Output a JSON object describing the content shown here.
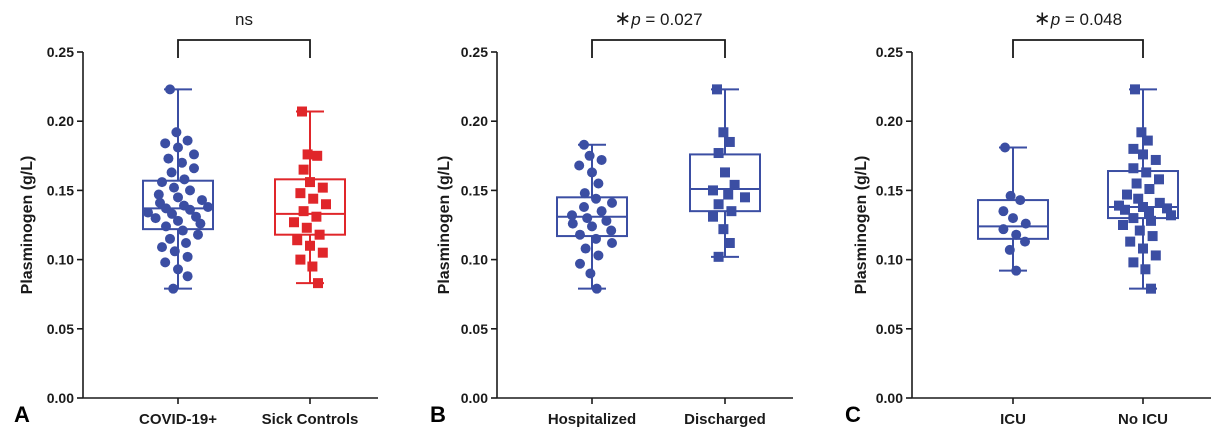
{
  "chart_data": [
    {
      "type": "box",
      "panel_label": "A",
      "ylabel": "Plasminogen (g/L)",
      "ylim": [
        0,
        0.25
      ],
      "yticks": [
        "0.00",
        "0.05",
        "0.10",
        "0.15",
        "0.20",
        "0.25"
      ],
      "categories": [
        "COVID-19+",
        "Sick Controls"
      ],
      "comparison": "ns",
      "colors": [
        "#3b4ea3",
        "#e0262a"
      ],
      "markers": [
        "circle",
        "square"
      ],
      "series": [
        {
          "box": {
            "min": 0.079,
            "q1": 0.122,
            "median": 0.137,
            "q3": 0.157,
            "max": 0.223
          },
          "points": [
            0.223,
            0.192,
            0.186,
            0.184,
            0.181,
            0.176,
            0.173,
            0.17,
            0.166,
            0.163,
            0.158,
            0.156,
            0.152,
            0.15,
            0.147,
            0.145,
            0.143,
            0.141,
            0.139,
            0.138,
            0.137,
            0.136,
            0.134,
            0.133,
            0.131,
            0.13,
            0.128,
            0.126,
            0.124,
            0.121,
            0.118,
            0.115,
            0.112,
            0.109,
            0.106,
            0.102,
            0.098,
            0.093,
            0.088,
            0.079
          ]
        },
        {
          "box": {
            "min": 0.083,
            "q1": 0.118,
            "median": 0.133,
            "q3": 0.158,
            "max": 0.207
          },
          "points": [
            0.207,
            0.176,
            0.175,
            0.165,
            0.156,
            0.152,
            0.148,
            0.144,
            0.14,
            0.135,
            0.131,
            0.127,
            0.123,
            0.118,
            0.114,
            0.11,
            0.105,
            0.1,
            0.095,
            0.083
          ]
        }
      ]
    },
    {
      "type": "box",
      "panel_label": "B",
      "ylabel": "Plasminogen (g/L)",
      "ylim": [
        0,
        0.25
      ],
      "yticks": [
        "0.00",
        "0.05",
        "0.10",
        "0.15",
        "0.20",
        "0.25"
      ],
      "categories": [
        "Hospitalized",
        "Discharged"
      ],
      "comparison_star": "∗",
      "comparison_p": "p",
      "comparison_value": " = 0.027",
      "colors": [
        "#3b4ea3",
        "#3b4ea3"
      ],
      "markers": [
        "circle",
        "square"
      ],
      "series": [
        {
          "box": {
            "min": 0.079,
            "q1": 0.117,
            "median": 0.131,
            "q3": 0.145,
            "max": 0.183
          },
          "points": [
            0.183,
            0.175,
            0.172,
            0.168,
            0.163,
            0.155,
            0.148,
            0.144,
            0.141,
            0.138,
            0.135,
            0.132,
            0.13,
            0.128,
            0.126,
            0.124,
            0.121,
            0.118,
            0.115,
            0.112,
            0.108,
            0.103,
            0.097,
            0.09,
            0.079
          ]
        },
        {
          "box": {
            "min": 0.102,
            "q1": 0.135,
            "median": 0.151,
            "q3": 0.176,
            "max": 0.223
          },
          "points": [
            0.223,
            0.192,
            0.185,
            0.177,
            0.163,
            0.154,
            0.15,
            0.147,
            0.145,
            0.14,
            0.135,
            0.131,
            0.122,
            0.112,
            0.102
          ]
        }
      ]
    },
    {
      "type": "box",
      "panel_label": "C",
      "ylabel": "Plasminogen (g/L)",
      "ylim": [
        0,
        0.25
      ],
      "yticks": [
        "0.00",
        "0.05",
        "0.10",
        "0.15",
        "0.20",
        "0.25"
      ],
      "categories": [
        "ICU",
        "No ICU"
      ],
      "comparison_star": "∗",
      "comparison_p": "p",
      "comparison_value": " = 0.048",
      "colors": [
        "#3b4ea3",
        "#3b4ea3"
      ],
      "markers": [
        "circle",
        "square"
      ],
      "series": [
        {
          "box": {
            "min": 0.092,
            "q1": 0.115,
            "median": 0.124,
            "q3": 0.143,
            "max": 0.181
          },
          "points": [
            0.181,
            0.146,
            0.143,
            0.135,
            0.13,
            0.126,
            0.122,
            0.118,
            0.113,
            0.107,
            0.092
          ]
        },
        {
          "box": {
            "min": 0.079,
            "q1": 0.13,
            "median": 0.138,
            "q3": 0.164,
            "max": 0.223
          },
          "points": [
            0.223,
            0.192,
            0.186,
            0.18,
            0.176,
            0.172,
            0.166,
            0.163,
            0.158,
            0.155,
            0.151,
            0.147,
            0.144,
            0.141,
            0.139,
            0.138,
            0.137,
            0.136,
            0.134,
            0.132,
            0.13,
            0.128,
            0.125,
            0.121,
            0.117,
            0.113,
            0.108,
            0.103,
            0.098,
            0.093,
            0.079
          ]
        }
      ]
    }
  ]
}
